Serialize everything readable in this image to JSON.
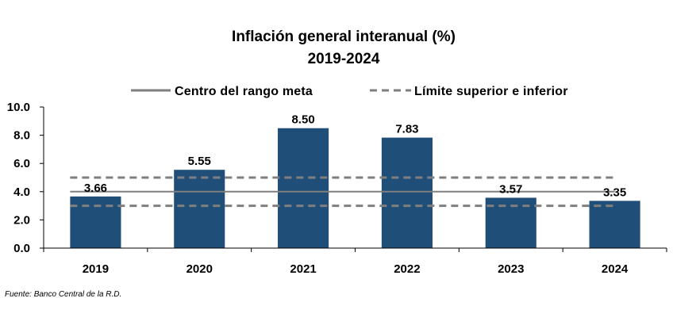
{
  "chart_data": {
    "type": "bar",
    "title": "Inflación general interanual (%)",
    "subtitle": "2019-2024",
    "categories": [
      "2019",
      "2020",
      "2021",
      "2022",
      "2023",
      "2024"
    ],
    "values": [
      3.66,
      5.55,
      8.5,
      7.83,
      3.57,
      3.35
    ],
    "value_labels": [
      "3.66",
      "5.55",
      "8.50",
      "7.83",
      "3.57",
      "3.35"
    ],
    "ylim": [
      0,
      10
    ],
    "yticks": [
      "0.0",
      "2.0",
      "4.0",
      "6.0",
      "8.0",
      "10.0"
    ],
    "ytick_values": [
      0,
      2,
      4,
      6,
      8,
      10
    ],
    "xlabel": "",
    "ylabel": "",
    "grid": false,
    "legend_position": "top",
    "legend": [
      {
        "label": "Centro del rango meta",
        "style": "solid"
      },
      {
        "label": "Límite superior e inferior",
        "style": "dashed"
      }
    ],
    "reference_lines": {
      "center": 4.0,
      "upper": 5.0,
      "lower": 3.0
    },
    "bar_color": "#1f4e79",
    "line_color": "#7f7f7f"
  },
  "source": "Fuente: Banco Central de la R.D."
}
